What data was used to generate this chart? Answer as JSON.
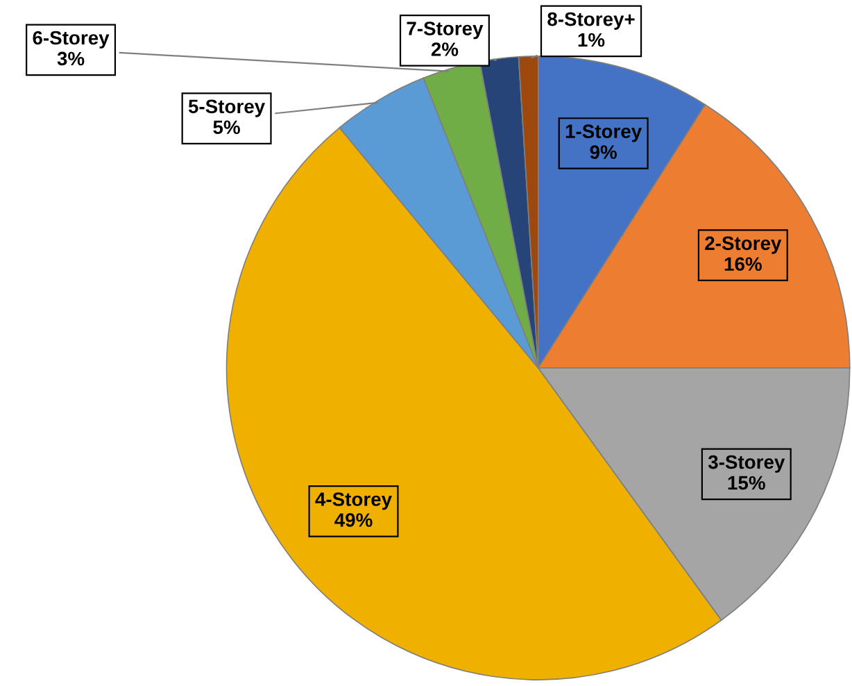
{
  "chart_data": {
    "type": "pie",
    "categories": [
      "1-Storey",
      "2-Storey",
      "3-Storey",
      "4-Storey",
      "5-Storey",
      "6-Storey",
      "7-Storey",
      "8-Storey+"
    ],
    "values": [
      9,
      16,
      15,
      49,
      5,
      3,
      2,
      1
    ],
    "colors": [
      "#4472c4",
      "#ed7d31",
      "#a5a5a5",
      "#f0b000",
      "#5b9bd5",
      "#70ad47",
      "#264478",
      "#9e480e"
    ],
    "value_labels": [
      "9%",
      "16%",
      "15%",
      "49%",
      "5%",
      "3%",
      "2%",
      "1%"
    ],
    "legend": false
  }
}
